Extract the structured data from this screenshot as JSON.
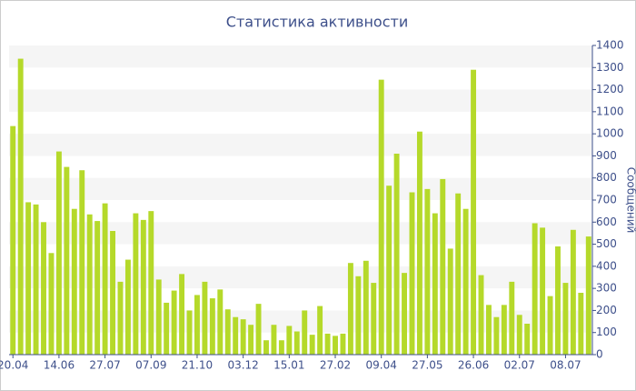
{
  "chart_data": {
    "type": "bar",
    "title": "Статистика активности",
    "y_label": "Сообщений",
    "categories": [
      "20.04",
      null,
      null,
      null,
      null,
      null,
      "14.06",
      null,
      null,
      null,
      null,
      null,
      "27.07",
      null,
      null,
      null,
      null,
      null,
      "07.09",
      null,
      null,
      null,
      null,
      null,
      "21.10",
      null,
      null,
      null,
      null,
      null,
      "03.12",
      null,
      null,
      null,
      null,
      null,
      "15.01",
      null,
      null,
      null,
      null,
      null,
      "27.02",
      null,
      null,
      null,
      null,
      null,
      "09.04",
      null,
      null,
      null,
      null,
      null,
      "27.05",
      null,
      null,
      null,
      null,
      null,
      "26.06",
      null,
      null,
      null,
      null,
      null,
      "02.07",
      null,
      null,
      null,
      null,
      null,
      "08.07",
      null,
      null,
      null
    ],
    "values": [
      1035,
      1340,
      690,
      680,
      600,
      460,
      920,
      850,
      660,
      835,
      635,
      605,
      685,
      560,
      330,
      430,
      640,
      610,
      650,
      340,
      235,
      290,
      365,
      200,
      270,
      330,
      255,
      295,
      205,
      170,
      160,
      135,
      230,
      65,
      135,
      65,
      130,
      105,
      200,
      90,
      220,
      95,
      85,
      95,
      415,
      355,
      425,
      325,
      1245,
      765,
      910,
      370,
      735,
      1010,
      750,
      640,
      795,
      480,
      730,
      660,
      1290,
      360,
      225,
      170,
      225,
      330,
      180,
      140,
      595,
      575,
      265,
      490,
      325,
      565,
      280,
      535
    ],
    "color": "#b5d92a",
    "ylim": [
      0,
      1400
    ],
    "yticks": [
      0,
      100,
      200,
      300,
      400,
      500,
      600,
      700,
      800,
      900,
      1000,
      1100,
      1200,
      1300,
      1400
    ],
    "grid": "bands",
    "y_axis_side": "right"
  }
}
